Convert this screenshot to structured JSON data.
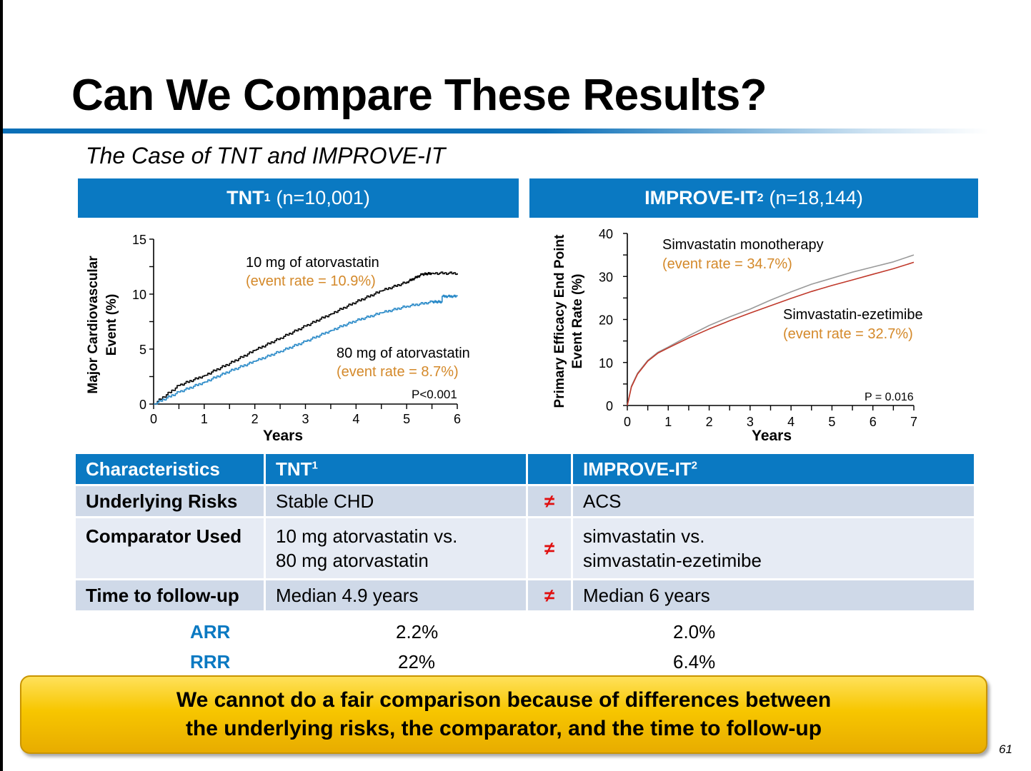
{
  "slide": {
    "title": "Can We Compare These Results?",
    "subtitle": "The Case of TNT and IMPROVE-IT",
    "page_number": "61"
  },
  "panels": [
    {
      "name": "TNT",
      "sup": "1",
      "n": "(n=10,001)"
    },
    {
      "name": "IMPROVE-IT",
      "sup": "2",
      "n": "(n=18,144)"
    }
  ],
  "colors": {
    "accent_blue": "#0a79c2",
    "annotation_orange": "#d4892a",
    "tnt_10mg_line": "#000000",
    "tnt_80mg_line": "#2a8ac8",
    "simva_line": "#9a9a9a",
    "simva_eze_line": "#c0392b",
    "neq_red": "#e01010",
    "callout_yellow": "#f7c600"
  },
  "chart_data": [
    {
      "type": "line",
      "ylabel": "Major Cardiovascular Event (%)",
      "xlabel": "Years",
      "xlim": [
        0,
        6
      ],
      "ylim": [
        0,
        15
      ],
      "x_ticks": [
        "0",
        "1",
        "2",
        "3",
        "4",
        "5",
        "6"
      ],
      "y_ticks": [
        "0",
        "5",
        "10",
        "15"
      ],
      "series": [
        {
          "name": "10 mg of atorvastatin",
          "annotation": "(event rate  = 10.9%)",
          "x": [
            0,
            0.5,
            1,
            1.5,
            2,
            2.5,
            3,
            3.5,
            4,
            4.5,
            5,
            5.3,
            5.5,
            6
          ],
          "values": [
            0,
            1.7,
            2.6,
            3.7,
            4.9,
            6.0,
            7.1,
            8.2,
            9.3,
            10.3,
            11.1,
            11.8,
            11.9,
            11.9
          ]
        },
        {
          "name": "80 mg of atorvastatin",
          "annotation": "(event rate  = 8.7%)",
          "x": [
            0,
            0.5,
            1,
            1.5,
            2,
            2.5,
            3,
            3.5,
            4,
            4.5,
            5,
            5.5,
            5.7,
            5.7,
            6
          ],
          "values": [
            0,
            1.1,
            2.0,
            3.0,
            3.9,
            4.8,
            5.7,
            6.7,
            7.6,
            8.3,
            8.9,
            9.3,
            9.3,
            9.8,
            9.8
          ]
        }
      ],
      "annotations": [
        "P<0.001"
      ]
    },
    {
      "type": "line",
      "ylabel": "Primary Efficacy End Point Event Rate (%)",
      "xlabel": "Years",
      "xlim": [
        0,
        7
      ],
      "ylim": [
        0,
        40
      ],
      "x_ticks": [
        "0",
        "1",
        "2",
        "3",
        "4",
        "5",
        "6",
        "7"
      ],
      "y_ticks": [
        "0",
        "10",
        "20",
        "30",
        "40"
      ],
      "series": [
        {
          "name": "Simvastatin monotherapy",
          "annotation": "(event rate  = 34.7%)",
          "x": [
            0,
            0.1,
            0.25,
            0.5,
            0.75,
            1,
            1.5,
            2,
            2.5,
            3,
            3.5,
            4,
            4.5,
            5,
            5.5,
            6,
            6.5,
            7
          ],
          "values": [
            0,
            4.5,
            7.5,
            10.5,
            12.4,
            13.6,
            16.2,
            18.6,
            20.6,
            22.4,
            24.5,
            26.4,
            28.2,
            29.6,
            31.0,
            32.2,
            33.4,
            35.0
          ]
        },
        {
          "name": "Simvastatin-ezetimibe",
          "annotation": "(event rate  = 32.7%)",
          "x": [
            0,
            0.1,
            0.25,
            0.5,
            0.75,
            1,
            1.5,
            2,
            2.5,
            3,
            3.5,
            4,
            4.5,
            5,
            5.5,
            6,
            6.5,
            7
          ],
          "values": [
            0,
            4.3,
            7.3,
            10.3,
            12.2,
            13.4,
            15.7,
            17.8,
            19.7,
            21.5,
            23.2,
            24.9,
            26.5,
            27.9,
            29.2,
            30.5,
            31.8,
            33.3
          ]
        }
      ],
      "annotations": [
        "P = 0.016"
      ]
    }
  ],
  "table": {
    "headers": [
      {
        "text": "Characteristics",
        "sup": ""
      },
      {
        "text": "TNT",
        "sup": "1"
      },
      {
        "text": "",
        "sup": ""
      },
      {
        "text": "IMPROVE-IT",
        "sup": "2"
      }
    ],
    "rows": [
      {
        "label": "Underlying Risks",
        "tnt": "Stable CHD",
        "neq": "≠",
        "improve": "ACS"
      },
      {
        "label": "Comparator Used",
        "tnt_lines": [
          "10 mg atorvastatin vs.",
          "80 mg atorvastatin"
        ],
        "neq": "≠",
        "improve_lines": [
          "simvastatin vs.",
          "simvastatin-ezetimibe"
        ]
      },
      {
        "label": "Time to follow-up",
        "tnt": "Median 4.9 years",
        "neq": "≠",
        "improve": "Median 6 years"
      }
    ]
  },
  "metrics": [
    {
      "label": "ARR",
      "tnt": "2.2%",
      "improve": "2.0%"
    },
    {
      "label": "RRR",
      "tnt": "22%",
      "improve": "6.4%"
    }
  ],
  "callout": {
    "line1": "We cannot do a fair comparison because of differences between",
    "line2": "the underlying risks, the comparator, and the time to follow-up"
  }
}
